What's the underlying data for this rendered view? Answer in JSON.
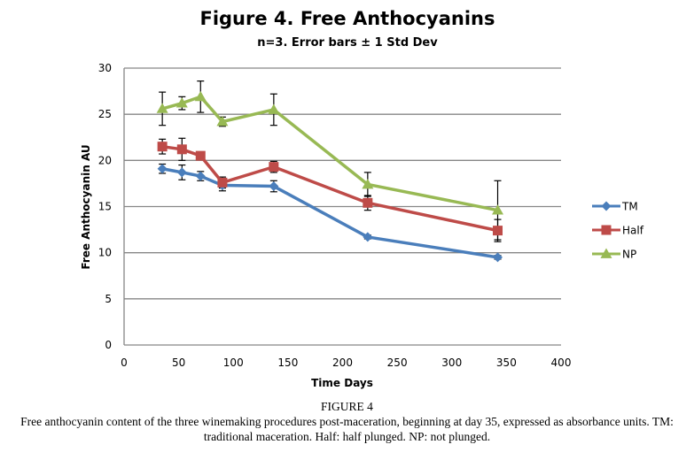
{
  "chart_data": {
    "type": "line",
    "title": "Figure 4. Free Anthocyanins",
    "subtitle": "n=3. Error bars ± 1 Std Dev",
    "xlabel": "Time Days",
    "ylabel": "Free Anthocyanin AU",
    "xlim": [
      0,
      400
    ],
    "ylim": [
      0,
      30
    ],
    "xticks": [
      0,
      50,
      100,
      150,
      200,
      250,
      300,
      350,
      400
    ],
    "yticks": [
      0,
      5,
      10,
      15,
      20,
      25,
      30
    ],
    "grid": "horizontal",
    "legend_position": "right",
    "series": [
      {
        "name": "TM",
        "color": "#4a7ebb",
        "marker": "diamond",
        "x": [
          35,
          53,
          70,
          90,
          137,
          223,
          342
        ],
        "y": [
          19.1,
          18.7,
          18.3,
          17.3,
          17.2,
          11.7,
          9.5
        ],
        "err": [
          0.5,
          0.8,
          0.5,
          0.6,
          0.6,
          0.2,
          0.2
        ]
      },
      {
        "name": "Half",
        "color": "#be4b48",
        "marker": "square",
        "x": [
          35,
          53,
          70,
          90,
          137,
          223,
          342
        ],
        "y": [
          21.5,
          21.2,
          20.5,
          17.6,
          19.3,
          15.4,
          12.4
        ],
        "err": [
          0.8,
          1.2,
          0.3,
          0.6,
          0.6,
          0.8,
          1.2
        ]
      },
      {
        "name": "NP",
        "color": "#98b954",
        "marker": "triangle",
        "x": [
          35,
          53,
          70,
          90,
          137,
          223,
          342
        ],
        "y": [
          25.6,
          26.2,
          26.9,
          24.2,
          25.5,
          17.4,
          14.6
        ],
        "err": [
          1.8,
          0.7,
          1.7,
          0.5,
          1.7,
          1.3,
          3.2
        ]
      }
    ]
  },
  "caption": {
    "label": "FIGURE 4",
    "text": "Free anthocyanin content of the three winemaking procedures post-maceration, beginning at day 35, expressed as absorbance units. TM: traditional maceration. Half: half plunged. NP: not plunged."
  }
}
